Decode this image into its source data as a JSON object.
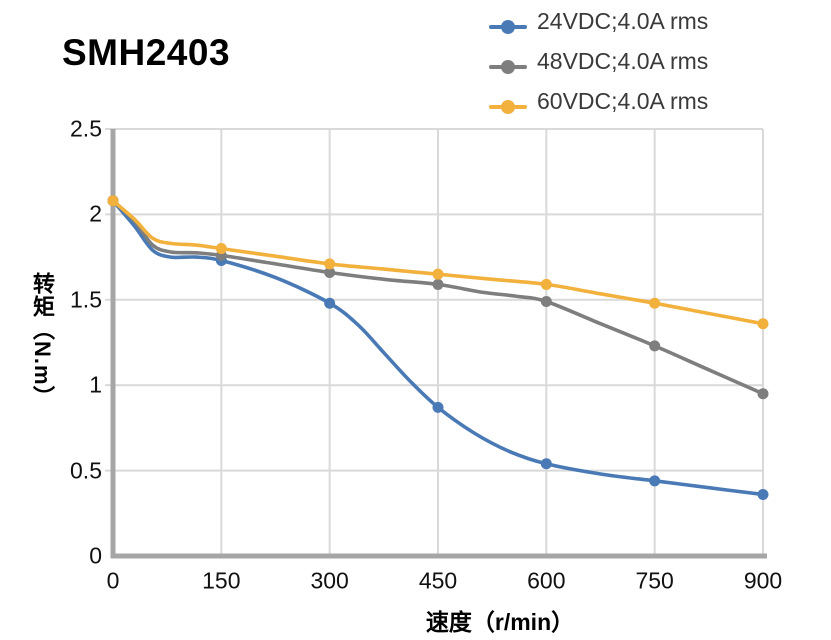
{
  "title": "SMH2403",
  "legend": {
    "position": "top-right",
    "items": [
      {
        "label": "24VDC;4.0A rms",
        "color": "#4A7AB5"
      },
      {
        "label": "48VDC;4.0A rms",
        "color": "#7E7E7E"
      },
      {
        "label": "60VDC;4.0A rms",
        "color": "#F2B13C"
      }
    ]
  },
  "chart_data": {
    "type": "line",
    "title": "SMH2403",
    "xlabel": "速度（r/min）",
    "ylabel": "转矩（N.m）",
    "xlim": [
      0,
      900
    ],
    "ylim": [
      0,
      2.5
    ],
    "x_ticks": [
      0,
      150,
      300,
      450,
      600,
      750,
      900
    ],
    "y_ticks": [
      0,
      0.5,
      1,
      1.5,
      2,
      2.5
    ],
    "grid": true,
    "grid_color": "#D9D9D9",
    "spine_color": "#A6A6A6",
    "categories": [
      0,
      150,
      300,
      450,
      600,
      750,
      900
    ],
    "series": [
      {
        "name": "24VDC;4.0A rms",
        "color": "#4A7AB5",
        "x": [
          0,
          150,
          300,
          450,
          600,
          750,
          900
        ],
        "values": [
          2.08,
          1.73,
          1.48,
          0.87,
          0.54,
          0.44,
          0.36
        ],
        "shape_points": [
          [
            0,
            2.08
          ],
          [
            30,
            1.93
          ],
          [
            55,
            1.79
          ],
          [
            80,
            1.75
          ],
          [
            115,
            1.75
          ],
          [
            150,
            1.73
          ],
          [
            225,
            1.63
          ],
          [
            300,
            1.48
          ],
          [
            340,
            1.35
          ],
          [
            375,
            1.19
          ],
          [
            410,
            1.03
          ],
          [
            450,
            0.87
          ],
          [
            500,
            0.72
          ],
          [
            550,
            0.61
          ],
          [
            600,
            0.54
          ],
          [
            675,
            0.48
          ],
          [
            750,
            0.44
          ],
          [
            825,
            0.4
          ],
          [
            900,
            0.36
          ]
        ]
      },
      {
        "name": "48VDC;4.0A rms",
        "color": "#7E7E7E",
        "x": [
          0,
          150,
          300,
          450,
          600,
          750,
          900
        ],
        "values": [
          2.08,
          1.76,
          1.66,
          1.59,
          1.49,
          1.23,
          0.95
        ],
        "shape_points": [
          [
            0,
            2.08
          ],
          [
            30,
            1.96
          ],
          [
            55,
            1.82
          ],
          [
            80,
            1.78
          ],
          [
            115,
            1.775
          ],
          [
            150,
            1.76
          ],
          [
            225,
            1.71
          ],
          [
            300,
            1.66
          ],
          [
            375,
            1.62
          ],
          [
            450,
            1.59
          ],
          [
            510,
            1.545
          ],
          [
            560,
            1.52
          ],
          [
            600,
            1.49
          ],
          [
            675,
            1.36
          ],
          [
            750,
            1.23
          ],
          [
            825,
            1.09
          ],
          [
            900,
            0.95
          ]
        ]
      },
      {
        "name": "60VDC;4.0A rms",
        "color": "#F2B13C",
        "x": [
          0,
          150,
          300,
          450,
          600,
          750,
          900
        ],
        "values": [
          2.08,
          1.8,
          1.71,
          1.65,
          1.59,
          1.48,
          1.36
        ],
        "shape_points": [
          [
            0,
            2.08
          ],
          [
            30,
            1.97
          ],
          [
            55,
            1.86
          ],
          [
            80,
            1.83
          ],
          [
            115,
            1.82
          ],
          [
            150,
            1.8
          ],
          [
            225,
            1.755
          ],
          [
            300,
            1.71
          ],
          [
            375,
            1.68
          ],
          [
            450,
            1.65
          ],
          [
            525,
            1.62
          ],
          [
            600,
            1.59
          ],
          [
            675,
            1.535
          ],
          [
            750,
            1.48
          ],
          [
            825,
            1.42
          ],
          [
            900,
            1.36
          ]
        ]
      }
    ]
  }
}
